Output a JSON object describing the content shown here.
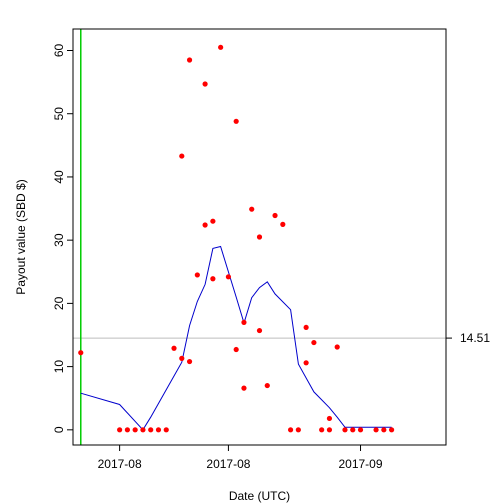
{
  "chart_data": {
    "type": "scatter",
    "title": "",
    "xlabel": "Date (UTC)",
    "ylabel": "Payout value (SBD $)",
    "xlim": [
      "2017-07-26",
      "2017-09-12"
    ],
    "ylim": [
      -2.4,
      63.4
    ],
    "x_ticks": [
      {
        "date": "2017-08-01",
        "label": "2017-08"
      },
      {
        "date": "2017-08-15",
        "label": "2017-08"
      },
      {
        "date": "2017-09-01",
        "label": "2017-09"
      }
    ],
    "y_ticks": [
      0,
      10,
      20,
      30,
      40,
      50,
      60
    ],
    "grid": false,
    "reference_line": {
      "y": 14.51,
      "label": "14.51",
      "color": "#bebebe"
    },
    "start_marker": {
      "date": "2017-07-27",
      "color": "#00cc00"
    },
    "points": {
      "color": "#ff0000",
      "x": [
        "2017-07-27",
        "2017-08-01",
        "2017-08-02",
        "2017-08-03",
        "2017-08-04",
        "2017-08-05",
        "2017-08-06",
        "2017-08-07",
        "2017-08-08",
        "2017-08-09",
        "2017-08-09",
        "2017-08-10",
        "2017-08-10",
        "2017-08-11",
        "2017-08-12",
        "2017-08-12",
        "2017-08-13",
        "2017-08-13",
        "2017-08-14",
        "2017-08-15",
        "2017-08-16",
        "2017-08-16",
        "2017-08-17",
        "2017-08-17",
        "2017-08-18",
        "2017-08-19",
        "2017-08-19",
        "2017-08-20",
        "2017-08-21",
        "2017-08-22",
        "2017-08-23",
        "2017-08-24",
        "2017-08-25",
        "2017-08-25",
        "2017-08-26",
        "2017-08-27",
        "2017-08-28",
        "2017-08-28",
        "2017-08-29",
        "2017-08-30",
        "2017-08-31",
        "2017-09-01",
        "2017-09-03",
        "2017-09-04",
        "2017-09-05"
      ],
      "y": [
        12.2,
        0,
        0,
        0,
        0,
        0,
        0,
        0,
        12.9,
        43.3,
        11.3,
        58.5,
        10.8,
        24.5,
        54.7,
        32.4,
        33.0,
        23.9,
        60.5,
        24.2,
        48.8,
        12.7,
        17.0,
        6.6,
        34.9,
        30.5,
        15.7,
        7.0,
        33.9,
        32.5,
        0,
        0,
        16.2,
        10.6,
        13.8,
        0,
        0,
        1.8,
        13.1,
        0,
        0,
        0,
        0,
        0,
        0
      ]
    },
    "series": [
      {
        "color": "#0000cc",
        "x": [
          "2017-07-27",
          "2017-08-01",
          "2017-08-04",
          "2017-08-05",
          "2017-08-09",
          "2017-08-10",
          "2017-08-11",
          "2017-08-12",
          "2017-08-13",
          "2017-08-14",
          "2017-08-16",
          "2017-08-17",
          "2017-08-18",
          "2017-08-19",
          "2017-08-20",
          "2017-08-21",
          "2017-08-23",
          "2017-08-24",
          "2017-08-26",
          "2017-08-28",
          "2017-08-29",
          "2017-08-30",
          "2017-09-05"
        ],
        "y": [
          5.8,
          4.0,
          0,
          2.0,
          10.7,
          16.5,
          20.3,
          23.0,
          28.7,
          29.0,
          21.0,
          16.9,
          20.9,
          22.5,
          23.4,
          21.5,
          19.0,
          10.4,
          6.0,
          3.5,
          2.0,
          0.4,
          0.4
        ]
      }
    ]
  }
}
